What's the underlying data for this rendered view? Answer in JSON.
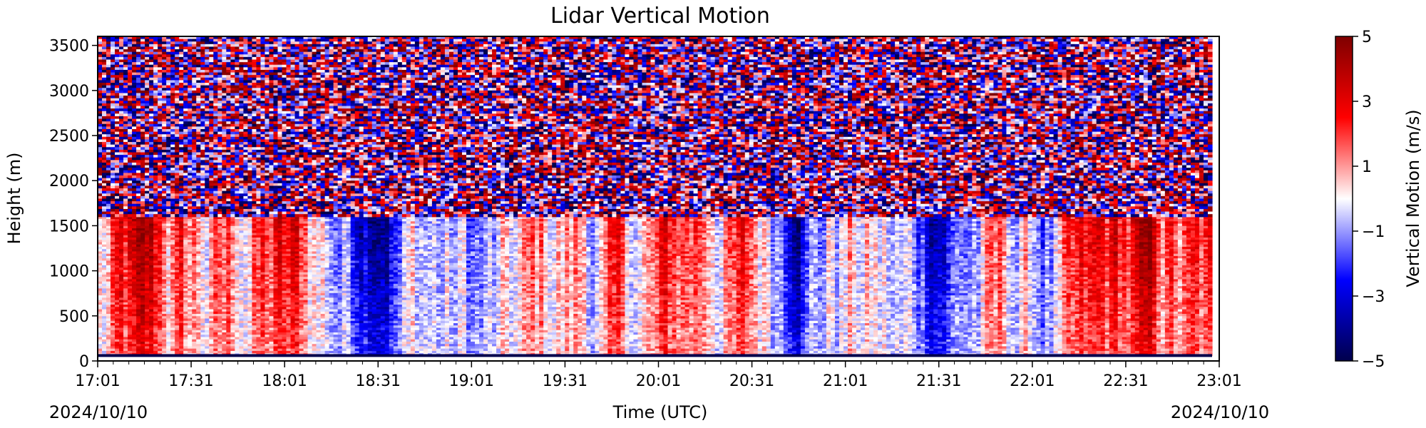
{
  "chart_data": {
    "type": "heatmap",
    "title": "Lidar Vertical Motion",
    "xlabel": "Time (UTC)",
    "ylabel": "Height (m)",
    "x_tick_labels": [
      "17:01",
      "17:31",
      "18:01",
      "18:31",
      "19:01",
      "19:31",
      "20:01",
      "20:31",
      "21:01",
      "21:31",
      "22:01",
      "22:31",
      "23:01"
    ],
    "x_start_date": "2024/10/10",
    "x_end_date": "2024/10/10",
    "y_ticks": [
      0,
      500,
      1000,
      1500,
      2000,
      2500,
      3000,
      3500
    ],
    "ylim": [
      0,
      3600
    ],
    "colorbar": {
      "label": "Vertical Motion (m/s)",
      "ticks": [
        5,
        3,
        1,
        -1,
        -3,
        -5
      ],
      "range": [
        -5,
        5
      ],
      "colormap": [
        "#00004c",
        "#0000ff",
        "#ffffff",
        "#ff0000",
        "#7f0000"
      ]
    },
    "description_values": {
      "noise_above_height_m": 1700,
      "surface_band_height_m": 60
    }
  }
}
